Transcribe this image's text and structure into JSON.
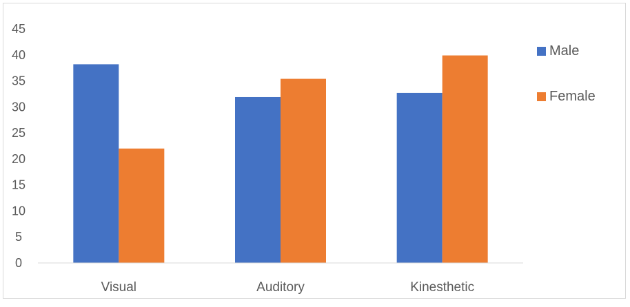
{
  "chart_data": {
    "type": "bar",
    "categories": [
      "Visual",
      "Auditory",
      "Kinesthetic"
    ],
    "series": [
      {
        "name": "Male",
        "values": [
          38.2,
          31.9,
          32.7
        ],
        "color": "#4472c4"
      },
      {
        "name": "Female",
        "values": [
          22.0,
          35.4,
          39.9
        ],
        "color": "#ed7d31"
      }
    ],
    "ylim": [
      0,
      45
    ],
    "yticks": [
      0,
      5,
      10,
      15,
      20,
      25,
      30,
      35,
      40,
      45
    ],
    "grid": false,
    "legend": "right",
    "axis_color": "#d9d9d9"
  }
}
